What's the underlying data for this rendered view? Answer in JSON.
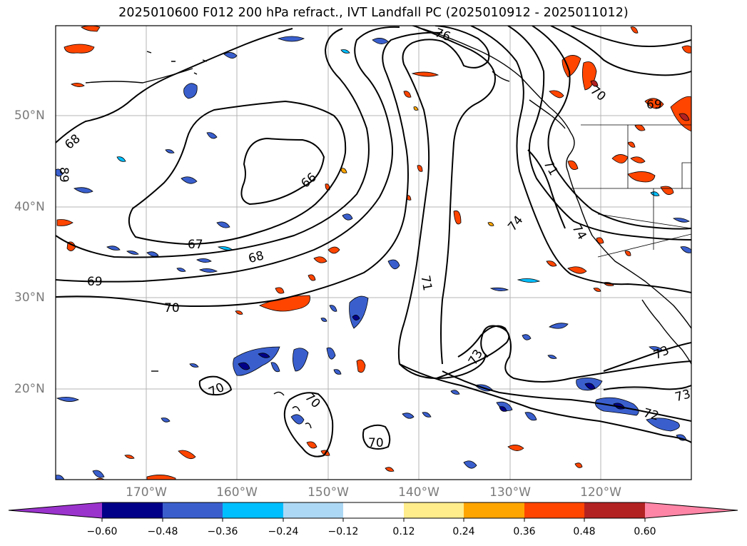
{
  "title": "2025010600 F012 200 hPa refract., IVT Landfall PC (2025010912 - 2025011012)",
  "latitude_labels": [
    "50°N",
    "40°N",
    "30°N",
    "20°N"
  ],
  "longitude_labels": [
    "170°W",
    "160°W",
    "150°W",
    "140°W",
    "130°W",
    "120°W"
  ],
  "contour_labels": [
    "68",
    "66",
    "67",
    "68",
    "69",
    "70",
    "70",
    "70",
    "70",
    "71",
    "73",
    "74",
    "74",
    "73",
    "72",
    "73",
    "71",
    "70",
    "69",
    "76",
    "89"
  ],
  "colorbar": {
    "ticks": [
      "−0.60",
      "−0.48",
      "−0.36",
      "−0.24",
      "−0.12",
      "0.12",
      "0.24",
      "0.36",
      "0.48",
      "0.60"
    ],
    "colors": [
      "#9a33cc",
      "#000088",
      "#3a5fcd",
      "#00bfff",
      "#add8f5",
      "#ffffff",
      "#ffec8b",
      "#ffa500",
      "#ff4500",
      "#b22222",
      "#ff85a6"
    ]
  }
}
